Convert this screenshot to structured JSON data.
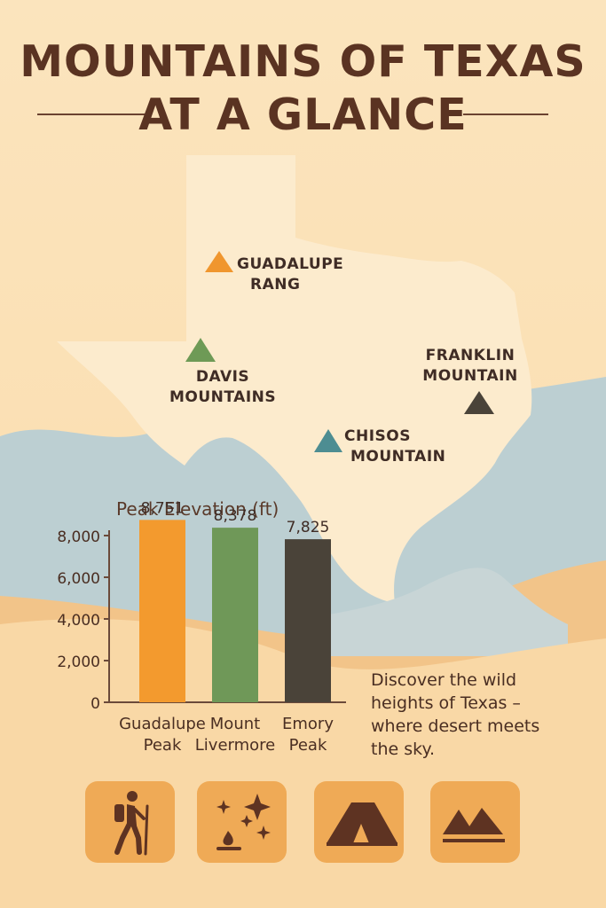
{
  "title": {
    "line1": "MOUNTAINS OF TEXAS",
    "line2": "AT A GLANCE"
  },
  "map": {
    "markers": [
      {
        "line1": "GUADALUPE",
        "line2": "RANG",
        "color": "#f0962e"
      },
      {
        "line1": "DAVIS",
        "line2": "MOUNTAINS",
        "color": "#6e9a56"
      },
      {
        "line1": "FRANKLIN",
        "line2": "MOUNTAIN",
        "color": "#4a4339"
      },
      {
        "line1": "CHISOS",
        "line2": "MOUNTAIN",
        "color": "#4d8d92"
      }
    ]
  },
  "chart_data": {
    "type": "bar",
    "title": "Peak Elevation (ft)",
    "categories": [
      {
        "line1": "Guadalupe",
        "line2": "Peak"
      },
      {
        "line1": "Mount",
        "line2": "Livermore"
      },
      {
        "line1": "Emory",
        "line2": "Peak"
      }
    ],
    "values": [
      8751,
      8378,
      7825
    ],
    "value_labels": [
      "8,751",
      "8,378",
      "7,825"
    ],
    "colors": [
      "#f39a2e",
      "#6f9858",
      "#4a4339"
    ],
    "yticks": [
      "0",
      "2,000",
      "4,000",
      "6,000",
      "8,000"
    ],
    "ylim": [
      0,
      8000
    ]
  },
  "blurb": "Discover the wild heights of Texas – where desert meets the sky.",
  "icons": [
    "hiker-icon",
    "campfire-stars-icon",
    "tent-icon",
    "mountains-icon"
  ],
  "colors": {
    "title": "#5a3322",
    "tile": "#efaa56",
    "icon": "#5e3322"
  }
}
